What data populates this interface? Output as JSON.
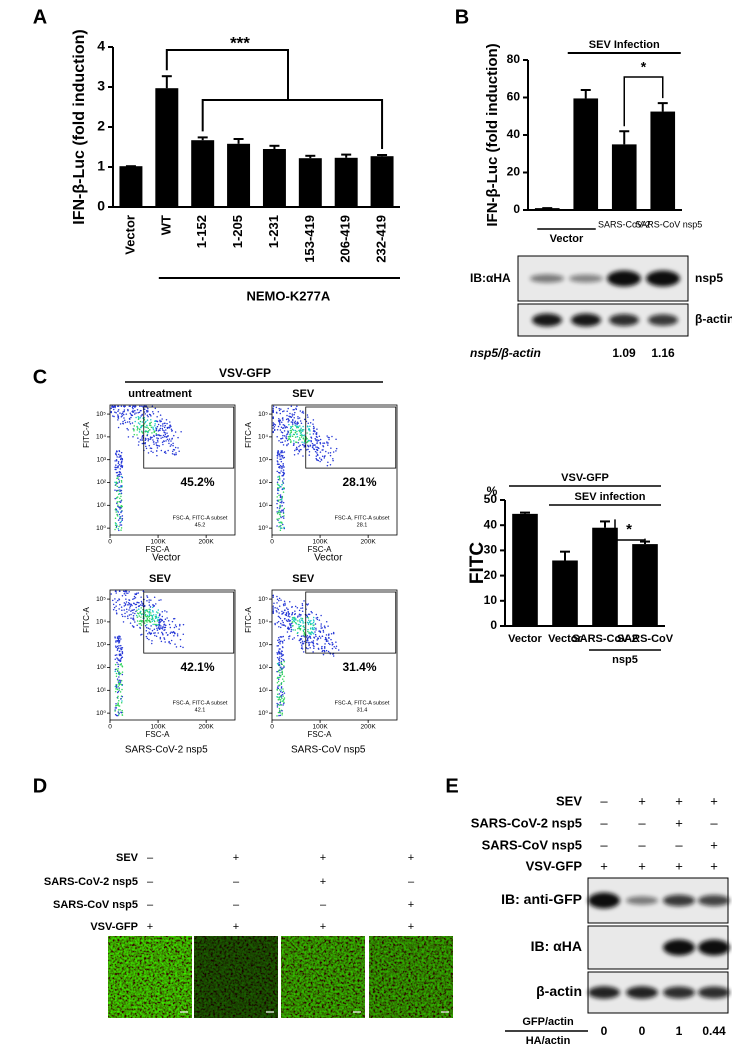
{
  "panel_labels": [
    "A",
    "B",
    "C",
    "D",
    "E"
  ],
  "chart_data": [
    {
      "type": "bar",
      "ylabel": "IFN-β-Luc (fold induction)",
      "categories": [
        "Vector",
        "WT",
        "1-152",
        "1-205",
        "1-231",
        "153-419",
        "206-419",
        "232-419"
      ],
      "values": [
        1.02,
        2.97,
        1.67,
        1.58,
        1.45,
        1.22,
        1.23,
        1.27
      ],
      "errors": [
        0,
        0.3,
        0.07,
        0.12,
        0.08,
        0.06,
        0.08,
        0.03
      ],
      "color": "#000000",
      "ylim": [
        0,
        4
      ],
      "yticks": [
        0,
        1,
        2,
        3,
        4
      ],
      "group_label": "NEMO-K277A",
      "significance": "***"
    },
    {
      "type": "bar",
      "ylabel": "IFN-β-Luc (fold induction)",
      "header": "SEV Infection",
      "categories": [
        null,
        null,
        "SARS-CoV-2",
        "SARS-CoV nsp5"
      ],
      "values": [
        1,
        59.5,
        35,
        52.5
      ],
      "errors": [
        0,
        4.5,
        7,
        4.5
      ],
      "color": "#000000",
      "ylim": [
        0,
        80
      ],
      "yticks": [
        0,
        20,
        40,
        60,
        80
      ],
      "group_label": "Vector",
      "significance": "*"
    },
    {
      "type": "bar",
      "ylabel": "FITC",
      "unit_label": "%",
      "header": "VSV-GFP",
      "subheader": "SEV infection",
      "categories": [
        "Vector",
        "Vector",
        "SARS-CoV-2",
        "SARS-CoV"
      ],
      "values": [
        44.5,
        26,
        39,
        32.5
      ],
      "errors": [
        0.5,
        3.5,
        2.5,
        1
      ],
      "color": "#000000",
      "ylim": [
        0,
        50
      ],
      "yticks": [
        0,
        10,
        20,
        30,
        40,
        50
      ],
      "group_label": "nsp5",
      "significance": "*"
    }
  ],
  "blot_B": {
    "rows": [
      {
        "label": "IB:αHA",
        "right_label": "nsp5"
      },
      {
        "right_label": "β-actin"
      }
    ],
    "ratio_label": "nsp5/β-actin",
    "ratios": [
      1.09,
      1.16
    ]
  },
  "flow_C": {
    "header": "VSV-GFP",
    "x_label": "FSC-A",
    "y_label": "FITC-A",
    "xlim": [
      0,
      260000
    ],
    "xticks": [
      0,
      {
        "value": 100000,
        "label": "100K"
      },
      {
        "value": 200000,
        "label": "200K"
      }
    ],
    "ylim": [
      0.5,
      250000
    ],
    "log_y": true,
    "yticks": [
      {
        "value": 1,
        "label": "10⁰"
      },
      {
        "value": 10,
        "label": "10¹"
      },
      {
        "value": 100,
        "label": "10²"
      },
      {
        "value": 1000,
        "label": "10³"
      },
      {
        "value": 10000,
        "label": "10⁴"
      },
      {
        "value": 100000,
        "label": "10⁵"
      }
    ],
    "plots": [
      {
        "header": "untreatment",
        "footer": "Vector",
        "percent": "45.2%",
        "subset_label": "FSC-A, FITC-A subset",
        "subset_value": 45.2
      },
      {
        "header": "SEV",
        "footer": "Vector",
        "percent": "28.1%",
        "subset_label": "FSC-A, FITC-A subset",
        "subset_value": 28.1
      },
      {
        "header": "SEV",
        "footer": "SARS-CoV-2 nsp5",
        "percent": "42.1%",
        "subset_label": "FSC-A, FITC-A subset",
        "subset_value": 42.1
      },
      {
        "header": "SEV",
        "footer": "SARS-CoV nsp5",
        "percent": "31.4%",
        "subset_label": "FSC-A, FITC-A subset",
        "subset_value": 31.4
      }
    ]
  },
  "panel_D": {
    "conditions": [
      {
        "label": "SEV",
        "signs": [
          "–",
          "+",
          "+",
          "+"
        ]
      },
      {
        "label": "SARS-CoV-2 nsp5",
        "signs": [
          "–",
          "–",
          "+",
          "–"
        ]
      },
      {
        "label": "SARS-CoV  nsp5",
        "signs": [
          "–",
          "–",
          "–",
          "+"
        ]
      },
      {
        "label": "VSV-GFP",
        "signs": [
          "+",
          "+",
          "+",
          "+"
        ]
      }
    ]
  },
  "blot_E": {
    "conditions": [
      {
        "label": "SEV",
        "signs": [
          "–",
          "+",
          "+",
          "+"
        ]
      },
      {
        "label": "SARS-CoV-2 nsp5",
        "signs": [
          "–",
          "–",
          "+",
          "–"
        ]
      },
      {
        "label": "SARS-CoV nsp5",
        "signs": [
          "–",
          "–",
          "–",
          "+"
        ]
      },
      {
        "label": "VSV-GFP",
        "signs": [
          "+",
          "+",
          "+",
          "+"
        ]
      }
    ],
    "rows": [
      "IB: anti-GFP",
      "IB: αHA",
      "β-actin"
    ],
    "ratio_top_label": "GFP/actin",
    "ratio_bottom_label": "HA/actin",
    "ratios": [
      0,
      0,
      1,
      0.44
    ]
  }
}
